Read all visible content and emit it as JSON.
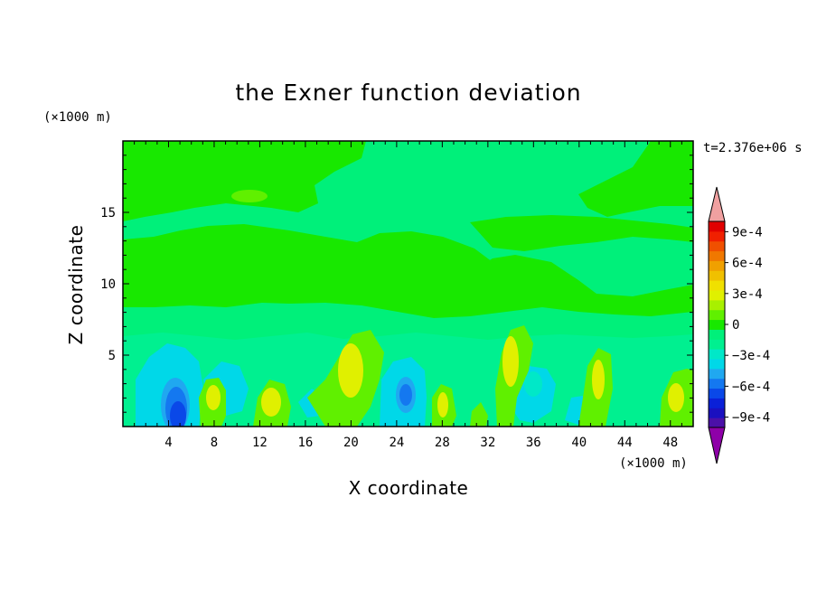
{
  "chart_data": {
    "type": "heatmap",
    "title": "the Exner function deviation",
    "xlabel": "X coordinate",
    "ylabel": "Z coordinate",
    "x_unit": "(×1000 m)",
    "y_unit": "(×1000 m)",
    "time_label": "t=2.376e+06 s",
    "xlim": [
      0,
      50
    ],
    "ylim": [
      0,
      20
    ],
    "x_ticks": [
      4,
      8,
      12,
      16,
      20,
      24,
      28,
      32,
      36,
      40,
      44,
      48
    ],
    "y_ticks": [
      5,
      10,
      15
    ],
    "x_tick_labels": [
      "4",
      "8",
      "12",
      "16",
      "20",
      "24",
      "28",
      "32",
      "36",
      "40",
      "44",
      "48"
    ],
    "y_tick_labels": [
      "5",
      "10",
      "15"
    ],
    "colorbar": {
      "levels": [
        -0.0011,
        -0.001,
        -0.0009,
        -0.0008,
        -0.0007,
        -0.0006,
        -0.0005,
        -0.0004,
        -0.0003,
        -0.0002,
        -0.0001,
        0,
        0.0001,
        0.0002,
        0.0003,
        0.0004,
        0.0005,
        0.0006,
        0.0007,
        0.0008,
        0.0009,
        0.001,
        0.0011
      ],
      "colors": [
        "#8e00a8",
        "#4b10a8",
        "#1a10c0",
        "#0a20d8",
        "#0a48e8",
        "#1478f0",
        "#20a8f0",
        "#00d8e8",
        "#00e8c8",
        "#00f090",
        "#00f07a",
        "#18e800",
        "#60f000",
        "#a8f000",
        "#e0f000",
        "#f0e000",
        "#f0c000",
        "#f0a000",
        "#f07800",
        "#f05000",
        "#f02000",
        "#e00000",
        "#f0a0a0"
      ],
      "tick_labels": [
        "9e-4",
        "6e-4",
        "3e-4",
        "0",
        "−3e-4",
        "−6e-4",
        "−9e-4"
      ],
      "tick_values": [
        0.0009,
        0.0006,
        0.0003,
        0,
        -0.0003,
        -0.0006,
        -0.0009
      ],
      "extend": "both"
    },
    "features": [
      {
        "x": 5.0,
        "z": 2.0,
        "value": -0.00075
      },
      {
        "x": 25.0,
        "z": 2.5,
        "value": -0.0005
      },
      {
        "x": 4.5,
        "z": 3.5,
        "value": -0.0003
      },
      {
        "x": 8.0,
        "z": 2.5,
        "value": 0.00025
      },
      {
        "x": 12.5,
        "z": 2.0,
        "value": 0.0002
      },
      {
        "x": 20.5,
        "z": 4.0,
        "value": 0.00025
      },
      {
        "x": 27.5,
        "z": 2.0,
        "value": 0.0002
      },
      {
        "x": 34.5,
        "z": 5.0,
        "value": 0.0002
      },
      {
        "x": 36.0,
        "z": 3.0,
        "value": -0.00025
      },
      {
        "x": 41.0,
        "z": 3.5,
        "value": 0.0002
      },
      {
        "x": 47.5,
        "z": 2.5,
        "value": 0.0002
      },
      {
        "x": 11.0,
        "z": 16.0,
        "value": 0.0001
      },
      {
        "x": 30.0,
        "z": 11.0,
        "value": 5e-05
      }
    ]
  }
}
